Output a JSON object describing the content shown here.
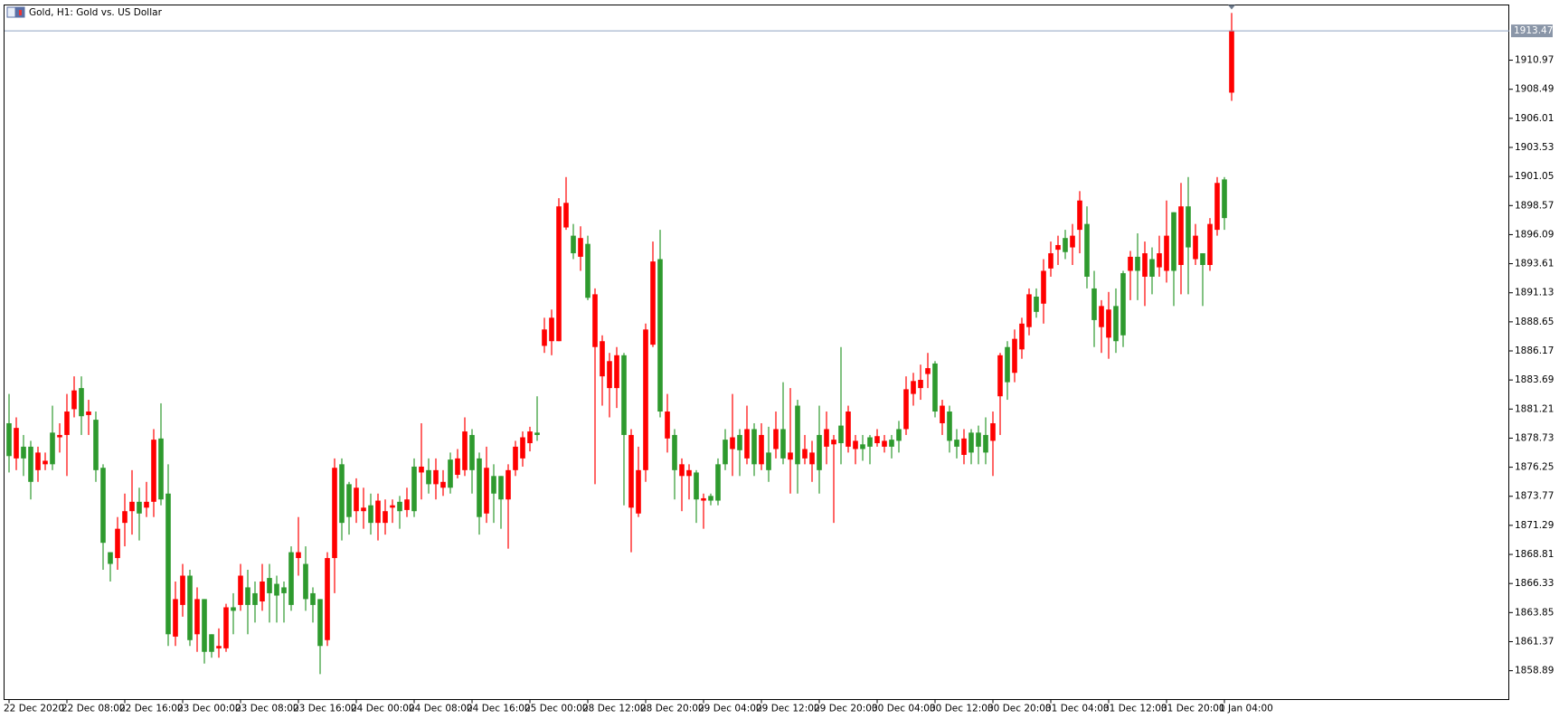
{
  "chart_data": {
    "type": "candlestick",
    "title": "Gold, H1:  Gold vs. US Dollar",
    "up_color": "#2e9a2e",
    "down_color": "#ff0000",
    "grid": false,
    "bid_line": 1913.47,
    "ylim": [
      1856.43,
      1915.68
    ],
    "yticks": [
      1858.89,
      1861.37,
      1863.85,
      1866.33,
      1868.81,
      1871.29,
      1873.77,
      1876.25,
      1878.73,
      1881.21,
      1883.69,
      1886.17,
      1888.65,
      1891.13,
      1893.61,
      1896.09,
      1898.57,
      1901.05,
      1903.53,
      1906.01,
      1908.49,
      1910.97
    ],
    "categories": [
      "22 Dec 2020",
      null,
      null,
      null,
      null,
      null,
      null,
      null,
      "22 Dec 08:00",
      null,
      null,
      null,
      null,
      null,
      null,
      null,
      "22 Dec 16:00",
      null,
      null,
      null,
      null,
      null,
      null,
      null,
      "23 Dec 00:00",
      null,
      null,
      null,
      null,
      null,
      null,
      null,
      "23 Dec 08:00",
      null,
      null,
      null,
      null,
      null,
      null,
      null,
      "23 Dec 16:00",
      null,
      null,
      null,
      null,
      null,
      null,
      null,
      "24 Dec 00:00",
      null,
      null,
      null,
      null,
      null,
      null,
      null,
      "24 Dec 08:00",
      null,
      null,
      null,
      null,
      null,
      null,
      null,
      "24 Dec 16:00",
      null,
      null,
      null,
      null,
      null,
      null,
      null,
      "25 Dec 00:00",
      null,
      null,
      null,
      null,
      null,
      null,
      null,
      "28 Dec 12:00",
      null,
      null,
      null,
      null,
      null,
      null,
      null,
      "28 Dec 20:00",
      null,
      null,
      null,
      null,
      null,
      null,
      null,
      "29 Dec 04:00",
      null,
      null,
      null,
      null,
      null,
      null,
      null,
      "29 Dec 12:00",
      null,
      null,
      null,
      null,
      null,
      null,
      null,
      "29 Dec 20:00",
      null,
      null,
      null,
      null,
      null,
      null,
      null,
      "30 Dec 04:00",
      null,
      null,
      null,
      null,
      null,
      null,
      null,
      "30 Dec 12:00",
      null,
      null,
      null,
      null,
      null,
      null,
      null,
      "30 Dec 20:00",
      null,
      null,
      null,
      null,
      null,
      null,
      null,
      "31 Dec 04:00",
      null,
      null,
      null,
      null,
      null,
      null,
      null,
      "31 Dec 12:00",
      null,
      null,
      null,
      null,
      null,
      null,
      null,
      "31 Dec 20:00",
      null,
      null,
      null,
      null,
      null,
      null,
      null,
      "1 Jan 04:00",
      null
    ],
    "open": [
      1877.2,
      1879.6,
      1877.0,
      1875.0,
      1877.5,
      1876.8,
      1876.5,
      1879.0,
      1881.0,
      1882.8,
      1880.6,
      1881.0,
      1876.0,
      1869.8,
      1868.0,
      1871.0,
      1872.5,
      1873.3,
      1872.3,
      1873.3,
      1878.6,
      1873.5,
      1862.0,
      1865.0,
      1867.0,
      1861.5,
      1865.0,
      1860.5,
      1860.5,
      1861.0,
      1864.3,
      1864.0,
      1867.0,
      1864.5,
      1864.5,
      1866.5,
      1865.5,
      1865.3,
      1865.5,
      1864.5,
      1869.0,
      1865.0,
      1864.5,
      1861.0,
      1868.5,
      1876.2,
      1871.5,
      1872.0,
      1874.5,
      1872.8,
      1871.5,
      1873.4,
      1872.5,
      1873.0,
      1872.5,
      1873.5,
      1872.5,
      1876.3,
      1874.8,
      1876.0,
      1875.0,
      1874.5,
      1877.0,
      1879.3,
      1876.0,
      1872.0,
      1876.2,
      1874.0,
      1873.5,
      1876.0,
      1878.0,
      1878.8,
      1879.3,
      1879.0,
      1888.0,
      1889.0,
      1898.5,
      1898.8,
      1894.5,
      1895.8,
      1890.7,
      1891.0,
      1887.0,
      1885.3,
      1885.8,
      1879.0,
      1879.0,
      1876.0,
      1888.0,
      1893.8,
      1881.0,
      1881.0,
      1876.0,
      1876.5,
      1876.0,
      1873.5,
      1873.6,
      1873.4,
      1873.4,
      1876.5,
      1878.8,
      1877.7,
      1879.5,
      1876.5,
      1879.0,
      1876.0,
      1879.5,
      1877.0,
      1877.5,
      1876.5,
      1877.8,
      1877.5,
      1876.0,
      1879.5,
      1878.6,
      1878.3,
      1881.0,
      1878.5,
      1877.8,
      1878.0,
      1878.9,
      1878.5,
      1878.0,
      1878.5,
      1882.9,
      1883.6,
      1883.7,
      1884.7,
      1881.0,
      1881.5,
      1878.5,
      1878.0,
      1878.7,
      1877.5,
      1878.0,
      1877.5,
      1880.0,
      1885.8,
      1883.5,
      1887.2,
      1888.5,
      1891.0,
      1889.5,
      1893.0,
      1894.5,
      1895.2,
      1894.6,
      1896.0,
      1899.0,
      1892.5,
      1888.8,
      1890.0,
      1889.7,
      1887.0,
      1887.5,
      1894.2,
      1893.0,
      1894.5,
      1892.5,
      1894.5,
      1896.0,
      1893.0,
      1898.5,
      1895.0,
      1896.0,
      1893.5,
      1897.0,
      1900.5,
      1897.5,
      1913.5
    ],
    "high": [
      1882.5,
      1880.5,
      1879.0,
      1878.5,
      1878.0,
      1877.5,
      1881.5,
      1880.0,
      1882.5,
      1884.0,
      1884.0,
      1882.0,
      1881.0,
      1876.5,
      1869.0,
      1872.0,
      1874.0,
      1876.0,
      1874.5,
      1875.0,
      1879.5,
      1881.7,
      1876.5,
      1866.5,
      1868.0,
      1867.5,
      1866.0,
      1865.0,
      1862.0,
      1862.5,
      1864.6,
      1865.5,
      1868.0,
      1867.5,
      1866.5,
      1868.0,
      1868.0,
      1867.0,
      1866.5,
      1869.5,
      1872.0,
      1869.5,
      1866.0,
      1865.0,
      1869.0,
      1877.0,
      1877.0,
      1875.0,
      1875.3,
      1874.5,
      1874.0,
      1874.0,
      1873.5,
      1873.5,
      1873.8,
      1874.5,
      1877.0,
      1880.0,
      1877.0,
      1877.0,
      1876.0,
      1877.5,
      1877.8,
      1880.5,
      1879.5,
      1877.5,
      1878.0,
      1876.5,
      1875.5,
      1876.5,
      1878.5,
      1879.3,
      1879.7,
      1882.3,
      1889.0,
      1889.7,
      1899.2,
      1901.0,
      1897.0,
      1896.8,
      1896.0,
      1891.5,
      1887.5,
      1886.0,
      1886.5,
      1886.0,
      1879.5,
      1878.0,
      1888.5,
      1895.5,
      1896.5,
      1882.5,
      1879.5,
      1877.0,
      1876.5,
      1876.0,
      1874.0,
      1874.0,
      1877.0,
      1879.5,
      1882.5,
      1879.5,
      1881.5,
      1880.0,
      1880.0,
      1879.7,
      1881.0,
      1883.5,
      1883.0,
      1882.0,
      1879.0,
      1878.5,
      1881.5,
      1881.0,
      1879.0,
      1886.5,
      1881.5,
      1879.0,
      1879.0,
      1879.0,
      1879.5,
      1879.0,
      1879.0,
      1880.2,
      1884.0,
      1884.3,
      1885.0,
      1886.0,
      1885.3,
      1882.0,
      1881.5,
      1879.5,
      1879.5,
      1879.5,
      1879.8,
      1880.5,
      1881.0,
      1886.0,
      1887.0,
      1888.0,
      1889.0,
      1891.5,
      1891.5,
      1894.0,
      1895.5,
      1896.0,
      1896.5,
      1897.0,
      1899.8,
      1898.5,
      1893.0,
      1890.5,
      1891.2,
      1891.5,
      1893.0,
      1894.7,
      1896.2,
      1895.5,
      1895.0,
      1896.0,
      1899.0,
      1898.0,
      1900.5,
      1901.0,
      1897.0,
      1894.5,
      1897.5,
      1901.0,
      1901.0,
      1915.0
    ],
    "low": [
      1875.8,
      1876.0,
      1875.5,
      1873.5,
      1875.0,
      1876.0,
      1876.0,
      1877.5,
      1875.5,
      1880.5,
      1879.0,
      1879.0,
      1875.0,
      1867.5,
      1866.5,
      1867.5,
      1869.5,
      1870.5,
      1870.0,
      1872.0,
      1872.0,
      1873.0,
      1861.0,
      1861.0,
      1863.5,
      1861.0,
      1860.5,
      1859.5,
      1860.0,
      1860.0,
      1860.5,
      1862.0,
      1864.0,
      1862.0,
      1863.0,
      1864.0,
      1863.0,
      1863.0,
      1863.0,
      1864.0,
      1867.0,
      1864.0,
      1863.0,
      1858.6,
      1861.0,
      1865.5,
      1870.0,
      1870.5,
      1871.5,
      1871.0,
      1870.5,
      1870.0,
      1870.5,
      1871.5,
      1871.0,
      1872.0,
      1872.0,
      1873.5,
      1874.0,
      1873.5,
      1873.8,
      1874.0,
      1875.3,
      1875.5,
      1874.0,
      1870.5,
      1871.5,
      1871.5,
      1871.0,
      1869.3,
      1875.5,
      1876.3,
      1877.6,
      1878.5,
      1886.0,
      1885.8,
      1887.0,
      1896.5,
      1894.0,
      1893.0,
      1890.5,
      1874.8,
      1881.5,
      1880.5,
      1881.3,
      1873.0,
      1869.0,
      1872.0,
      1875.0,
      1886.5,
      1880.5,
      1877.5,
      1873.5,
      1872.5,
      1873.5,
      1871.5,
      1871.0,
      1873.0,
      1873.0,
      1876.0,
      1875.5,
      1875.5,
      1876.5,
      1875.5,
      1876.0,
      1875.0,
      1877.0,
      1876.5,
      1874.0,
      1874.0,
      1876.5,
      1875.0,
      1874.0,
      1876.5,
      1871.5,
      1876.5,
      1877.5,
      1876.5,
      1876.8,
      1876.5,
      1878.0,
      1877.5,
      1877.0,
      1877.5,
      1879.0,
      1881.5,
      1882.0,
      1883.0,
      1880.5,
      1879.0,
      1877.5,
      1877.0,
      1876.5,
      1876.5,
      1876.5,
      1876.5,
      1875.5,
      1879.0,
      1882.0,
      1883.5,
      1885.5,
      1887.5,
      1889.0,
      1888.5,
      1892.5,
      1893.5,
      1894.0,
      1893.5,
      1894.5,
      1891.5,
      1886.5,
      1886.0,
      1885.5,
      1886.0,
      1886.5,
      1890.5,
      1890.5,
      1890.0,
      1891.0,
      1892.5,
      1892.0,
      1890.0,
      1891.0,
      1891.0,
      1893.5,
      1890.0,
      1893.0,
      1896.0,
      1896.5,
      1907.5
    ],
    "close": [
      1880.0,
      1877.0,
      1878.0,
      1878.0,
      1876.0,
      1876.5,
      1879.2,
      1878.8,
      1879.0,
      1881.2,
      1883.0,
      1880.7,
      1880.3,
      1876.2,
      1869.0,
      1868.5,
      1871.5,
      1872.5,
      1873.3,
      1872.8,
      1873.3,
      1878.7,
      1874.0,
      1861.8,
      1864.5,
      1867.0,
      1862.0,
      1865.0,
      1862.0,
      1860.8,
      1860.8,
      1864.3,
      1864.5,
      1866.0,
      1865.5,
      1864.8,
      1866.8,
      1866.3,
      1866.0,
      1869.0,
      1868.5,
      1868.0,
      1865.5,
      1865.0,
      1861.5,
      1868.5,
      1876.5,
      1874.8,
      1872.5,
      1872.5,
      1873.0,
      1871.5,
      1871.5,
      1872.8,
      1873.3,
      1872.6,
      1876.3,
      1875.8,
      1876.0,
      1874.8,
      1874.5,
      1876.9,
      1875.6,
      1876.0,
      1879.0,
      1877.0,
      1872.3,
      1875.5,
      1875.5,
      1873.5,
      1876.0,
      1877.0,
      1878.3,
      1879.2,
      1886.6,
      1887.0,
      1887.0,
      1896.7,
      1896.0,
      1894.2,
      1895.3,
      1886.5,
      1884.0,
      1883.0,
      1883.0,
      1885.8,
      1872.8,
      1872.3,
      1876.0,
      1886.7,
      1894.0,
      1878.7,
      1879.0,
      1875.5,
      1875.5,
      1875.8,
      1873.4,
      1873.8,
      1876.5,
      1878.6,
      1877.8,
      1879.0,
      1877.0,
      1879.5,
      1876.5,
      1877.5,
      1877.8,
      1879.5,
      1876.9,
      1881.5,
      1877.0,
      1876.5,
      1879.0,
      1878.0,
      1878.2,
      1879.8,
      1878.0,
      1877.8,
      1878.2,
      1878.8,
      1878.3,
      1878.0,
      1878.6,
      1879.5,
      1879.5,
      1882.5,
      1883.0,
      1884.2,
      1885.1,
      1880.0,
      1881.0,
      1878.6,
      1877.3,
      1879.2,
      1879.2,
      1879.0,
      1878.5,
      1882.3,
      1886.5,
      1884.3,
      1886.3,
      1888.2,
      1890.8,
      1890.2,
      1893.2,
      1894.8,
      1895.8,
      1895.0,
      1896.5,
      1897.0,
      1891.5,
      1888.2,
      1887.3,
      1890.0,
      1892.8,
      1893.0,
      1894.2,
      1892.5,
      1894.0,
      1893.3,
      1893.0,
      1898.0,
      1893.5,
      1898.5,
      1894.0,
      1894.5,
      1893.5,
      1896.5,
      1900.8,
      1908.2
    ]
  }
}
